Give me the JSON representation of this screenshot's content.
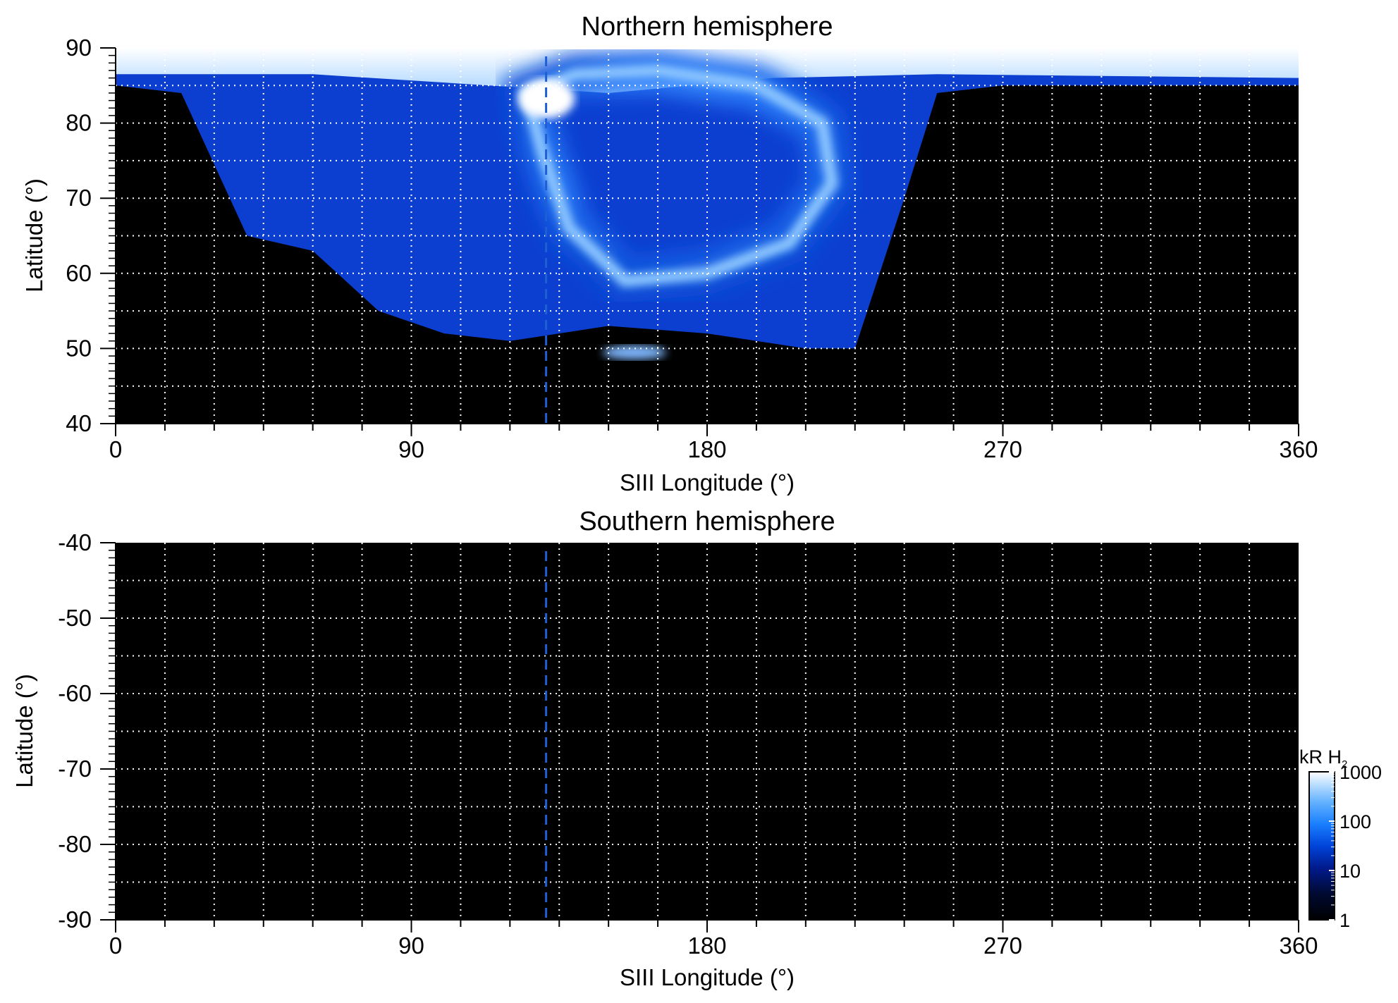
{
  "chart_data": [
    {
      "type": "heatmap",
      "title": "Northern hemisphere",
      "xlabel": "SIII Longitude (°)",
      "ylabel": "Latitude (°)",
      "xlim": [
        0,
        360
      ],
      "ylim": [
        40,
        90
      ],
      "x_ticks": [
        "0",
        "90",
        "180",
        "270",
        "360"
      ],
      "y_ticks": [
        "40",
        "50",
        "60",
        "70",
        "80",
        "90"
      ],
      "grid": true,
      "grid_style": "dotted white, every 15° longitude and 5° latitude",
      "marker_line_longitude": 131,
      "marker_line_color": "#1f5fd6",
      "background_color": "#000000",
      "emission_region": {
        "description_points": [
          {
            "lon": 0,
            "lat_low": 85,
            "lat_high": 90
          },
          {
            "lon": 20,
            "lat_low": 84,
            "lat_high": 90
          },
          {
            "lon": 40,
            "lat_low": 65,
            "lat_high": 90
          },
          {
            "lon": 60,
            "lat_low": 63,
            "lat_high": 90
          },
          {
            "lon": 80,
            "lat_low": 55,
            "lat_high": 90
          },
          {
            "lon": 100,
            "lat_low": 52,
            "lat_high": 90
          },
          {
            "lon": 120,
            "lat_low": 51,
            "lat_high": 90
          },
          {
            "lon": 150,
            "lat_low": 53,
            "lat_high": 90
          },
          {
            "lon": 180,
            "lat_low": 52,
            "lat_high": 90
          },
          {
            "lon": 210,
            "lat_low": 50,
            "lat_high": 90
          },
          {
            "lon": 225,
            "lat_low": 50,
            "lat_high": 90
          },
          {
            "lon": 240,
            "lat_low": 70,
            "lat_high": 90
          },
          {
            "lon": 250,
            "lat_low": 84,
            "lat_high": 90
          },
          {
            "lon": 270,
            "lat_low": 85,
            "lat_high": 90
          },
          {
            "lon": 360,
            "lat_low": 85,
            "lat_high": 90
          }
        ],
        "main_oval": [
          {
            "lon": 125,
            "lat": 84
          },
          {
            "lon": 140,
            "lat": 86.5
          },
          {
            "lon": 165,
            "lat": 87
          },
          {
            "lon": 195,
            "lat": 85
          },
          {
            "lon": 215,
            "lat": 80
          },
          {
            "lon": 218,
            "lat": 72
          },
          {
            "lon": 205,
            "lat": 64
          },
          {
            "lon": 180,
            "lat": 60
          },
          {
            "lon": 155,
            "lat": 59
          },
          {
            "lon": 138,
            "lat": 66
          },
          {
            "lon": 130,
            "lat": 76
          }
        ]
      },
      "series": []
    },
    {
      "type": "heatmap",
      "title": "Southern hemisphere",
      "xlabel": "SIII Longitude (°)",
      "ylabel": "Latitude (°)",
      "xlim": [
        0,
        360
      ],
      "ylim": [
        -90,
        -40
      ],
      "x_ticks": [
        "0",
        "90",
        "180",
        "270",
        "360"
      ],
      "y_ticks": [
        "-40",
        "-50",
        "-60",
        "-70",
        "-80",
        "-90"
      ],
      "grid": true,
      "marker_line_longitude": 131,
      "marker_line_color": "#1f5fd6",
      "background_color": "#000000",
      "series": []
    }
  ],
  "colorbar": {
    "label_main": "kR H",
    "label_subscript": "2",
    "scale": "log",
    "range": [
      1,
      1000
    ],
    "ticks": [
      "1",
      "10",
      "100",
      "1000"
    ],
    "colors": [
      "#000000",
      "#000a33",
      "#001a8c",
      "#0044d9",
      "#1a80ff",
      "#66b3ff",
      "#bfe0ff",
      "#ffffff"
    ]
  }
}
